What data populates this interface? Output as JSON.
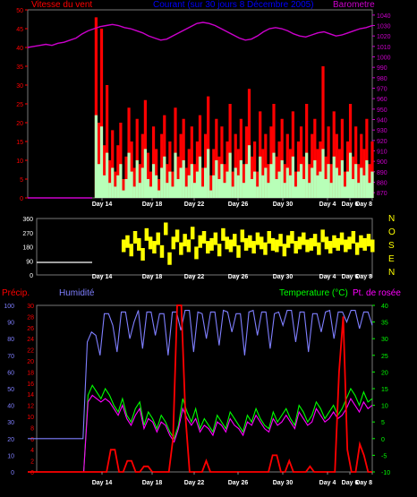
{
  "colors": {
    "background": "#000000",
    "wind_avg": "#b8ffb8",
    "wind_gust": "#ff0000",
    "barometer": "#cc00cc",
    "direction": "#ffff00",
    "humidity": "#7f7fff",
    "precip": "#ff0000",
    "temperature": "#00ff00",
    "dewpoint": "#ff00ff",
    "title": "#0000ff",
    "zero_line": "#ffffff",
    "grid": "#555555"
  },
  "header": {
    "wind_label": "Vitesse du vent",
    "title": "Courant (sur 30 jours 8 Décembre 2005)",
    "barometer_label": "Barometre"
  },
  "direction_letters": [
    "N",
    "O",
    "S",
    "E",
    "N"
  ],
  "bottom_header": {
    "precip_label": "Précip.",
    "humidity_label": "Humidité",
    "temperature_label": "Temperature (°C)",
    "dewpoint_label": "Pt. de rosée"
  },
  "x_tick_labels": [
    "Day 14",
    "Day 18",
    "Day 22",
    "Day 26",
    "Day 30",
    "Day 4",
    "Day 6",
    "Day 8"
  ],
  "chart_data": [
    {
      "type": "area",
      "title": "Courant (sur 30 jours 8 Décembre 2005)",
      "x_ticks": [
        "Day 14",
        "Day 18",
        "Day 22",
        "Day 26",
        "Day 30",
        "Day 4",
        "Day 6",
        "Day 8"
      ],
      "y_left_ticks": [
        0,
        5,
        10,
        15,
        20,
        25,
        30,
        35,
        40,
        45,
        50
      ],
      "y_right_ticks": [
        870,
        880,
        890,
        900,
        910,
        920,
        930,
        940,
        950,
        960,
        970,
        980,
        990,
        1000,
        1010,
        1020,
        1030,
        1040
      ],
      "ylim_left": [
        0,
        50
      ],
      "ylim_right": [
        865,
        1045
      ],
      "series": [
        {
          "name": "Vitesse du vent",
          "axis": "left",
          "color": "#b8ffb8",
          "values": [
            0,
            0,
            0,
            0,
            0,
            0,
            0,
            0,
            0,
            0,
            0,
            0,
            0,
            0,
            0,
            0,
            0,
            0,
            0,
            0,
            0,
            0,
            0,
            0,
            0,
            22,
            9,
            19,
            6,
            12,
            4,
            8,
            3,
            6,
            9,
            2,
            5,
            12,
            7,
            3,
            10,
            4,
            8,
            13,
            5,
            3,
            9,
            6,
            2,
            8,
            11,
            4,
            7,
            3,
            12,
            5,
            8,
            10,
            3,
            6,
            9,
            4,
            7,
            11,
            3,
            8,
            13,
            2,
            6,
            10,
            5,
            9,
            4,
            7,
            12,
            3,
            8,
            6,
            10,
            4,
            9,
            14,
            5,
            7,
            3,
            11,
            6,
            8,
            4,
            9,
            12,
            5,
            7,
            10,
            4,
            8,
            6,
            11,
            3,
            7,
            9,
            5,
            12,
            4,
            8,
            10,
            6,
            7,
            13,
            5,
            9,
            4,
            11,
            8,
            6,
            10,
            3,
            7,
            12,
            5,
            9,
            4,
            8,
            6,
            10,
            4,
            7
          ]
        },
        {
          "name": "Rafales",
          "axis": "left",
          "color": "#ff0000",
          "values": [
            0,
            0,
            0,
            0,
            0,
            0,
            0,
            0,
            0,
            0,
            0,
            0,
            0,
            0,
            0,
            0,
            0,
            0,
            0,
            0,
            0,
            0,
            0,
            0,
            0,
            48,
            20,
            45,
            14,
            30,
            10,
            18,
            7,
            14,
            20,
            5,
            11,
            24,
            15,
            8,
            21,
            9,
            17,
            26,
            12,
            7,
            19,
            13,
            5,
            17,
            22,
            9,
            15,
            7,
            24,
            11,
            17,
            21,
            8,
            13,
            19,
            9,
            15,
            22,
            8,
            17,
            27,
            6,
            13,
            21,
            11,
            19,
            9,
            15,
            25,
            7,
            17,
            13,
            21,
            9,
            19,
            29,
            11,
            15,
            7,
            23,
            13,
            17,
            9,
            19,
            25,
            11,
            15,
            21,
            9,
            17,
            13,
            23,
            7,
            15,
            19,
            11,
            25,
            9,
            17,
            21,
            13,
            15,
            35,
            11,
            19,
            9,
            23,
            17,
            13,
            21,
            7,
            15,
            25,
            11,
            19,
            9,
            17,
            13,
            21,
            9,
            15
          ]
        },
        {
          "name": "Barometre",
          "axis": "right",
          "color": "#cc00cc",
          "values": [
            1009,
            1010,
            1011,
            1012,
            1011,
            1013,
            1014,
            1016,
            1018,
            1022,
            1025,
            1027,
            1029,
            1030,
            1031,
            1030,
            1028,
            1027,
            1025,
            1023,
            1020,
            1018,
            1016,
            1017,
            1020,
            1023,
            1026,
            1029,
            1032,
            1033,
            1032,
            1030,
            1027,
            1024,
            1021,
            1018,
            1016,
            1017,
            1020,
            1024,
            1027,
            1028,
            1027,
            1025,
            1022,
            1020,
            1019,
            1021,
            1023,
            1024,
            1022,
            1020,
            1021,
            1023,
            1025,
            1027,
            1028,
            1030
          ]
        }
      ]
    },
    {
      "type": "scatter",
      "name": "Direction du vent",
      "y_ticks": [
        0,
        90,
        180,
        270,
        360
      ],
      "ylim": [
        0,
        360
      ],
      "series": [
        {
          "name": "Direction",
          "color": "#ffff00",
          "values": [
            0,
            0,
            0,
            0,
            0,
            0,
            0,
            0,
            0,
            0,
            0,
            0,
            0,
            0,
            0,
            0,
            0,
            0,
            0,
            0,
            0,
            0,
            0,
            0,
            0,
            180,
            210,
            150,
            240,
            190,
            120,
            260,
            200,
            170,
            230,
            140,
            300,
            90,
            200,
            250,
            160,
            220,
            180,
            270,
            130,
            210,
            240,
            170,
            190,
            230,
            150,
            260,
            200,
            180,
            220,
            140,
            250,
            190,
            210,
            170,
            230,
            200,
            160,
            240,
            190,
            180,
            220,
            150,
            210,
            240,
            170,
            200,
            230,
            180,
            190,
            220,
            160,
            250,
            200,
            170,
            210,
            190,
            230,
            180,
            200,
            240,
            160,
            210,
            190,
            220,
            180
          ]
        }
      ]
    },
    {
      "type": "line",
      "x_ticks": [
        "Day 14",
        "Day 18",
        "Day 22",
        "Day 26",
        "Day 30",
        "Day 4",
        "Day 6",
        "Day 8"
      ],
      "humidity_ticks": [
        0,
        10,
        20,
        30,
        40,
        50,
        60,
        70,
        80,
        90,
        100
      ],
      "precip_ticks": [
        0,
        2,
        4,
        6,
        8,
        10,
        12,
        14,
        16,
        18,
        20,
        22,
        24,
        26,
        28,
        30
      ],
      "temp_ticks": [
        -10,
        -5,
        0,
        5,
        10,
        15,
        20,
        25,
        30,
        35,
        40
      ],
      "series": [
        {
          "name": "Humidité",
          "axis": "humidity",
          "color": "#7f7fff",
          "values": [
            20,
            20,
            20,
            20,
            20,
            20,
            20,
            20,
            20,
            20,
            20,
            20,
            20,
            20,
            78,
            84,
            82,
            70,
            95,
            95,
            88,
            72,
            96,
            96,
            80,
            90,
            97,
            74,
            96,
            96,
            82,
            95,
            95,
            70,
            96,
            96,
            85,
            97,
            97,
            72,
            96,
            95,
            80,
            96,
            96,
            76,
            97,
            96,
            84,
            95,
            95,
            70,
            96,
            97,
            82,
            96,
            96,
            74,
            95,
            96,
            88,
            97,
            97,
            78,
            96,
            96,
            72,
            95,
            95,
            84,
            96,
            97,
            80,
            96,
            96,
            90,
            97,
            97,
            86,
            96,
            96,
            88
          ]
        },
        {
          "name": "Précip.",
          "axis": "precip",
          "color": "#ff0000",
          "values": [
            0,
            0,
            0,
            0,
            0,
            0,
            0,
            0,
            0,
            0,
            0,
            0,
            0,
            0,
            0,
            0,
            0,
            0,
            0,
            0,
            4,
            4,
            0,
            0,
            2,
            2,
            0,
            0,
            1,
            1,
            0,
            0,
            0,
            0,
            0,
            6,
            30,
            30,
            10,
            0,
            0,
            0,
            0,
            2,
            0,
            0,
            0,
            0,
            0,
            0,
            0,
            0,
            0,
            0,
            0,
            0,
            0,
            0,
            0,
            3,
            3,
            0,
            0,
            2,
            0,
            0,
            0,
            0,
            1,
            0,
            0,
            0,
            0,
            0,
            0,
            18,
            28,
            4,
            0,
            0,
            5,
            3,
            0,
            0
          ]
        },
        {
          "name": "Temperature (°C)",
          "axis": "temp",
          "color": "#00ff00",
          "values": [
            -10,
            -10,
            -10,
            -10,
            -10,
            -10,
            -10,
            -10,
            -10,
            -10,
            -10,
            -10,
            -10,
            -10,
            13,
            16,
            14,
            12,
            15,
            13,
            10,
            8,
            12,
            7,
            5,
            9,
            11,
            4,
            8,
            6,
            3,
            7,
            5,
            2,
            0,
            4,
            12,
            8,
            5,
            9,
            3,
            6,
            4,
            2,
            7,
            5,
            3,
            8,
            6,
            4,
            2,
            7,
            5,
            9,
            6,
            4,
            3,
            8,
            5,
            7,
            9,
            6,
            4,
            10,
            8,
            5,
            7,
            11,
            9,
            6,
            8,
            10,
            7,
            9,
            12,
            15,
            13,
            10,
            14,
            11,
            12
          ]
        },
        {
          "name": "Pt. de rosée",
          "axis": "temp",
          "color": "#ff00ff",
          "values": [
            -10,
            -10,
            -10,
            -10,
            -10,
            -10,
            -10,
            -10,
            -10,
            -10,
            -10,
            -10,
            -10,
            -10,
            11,
            13,
            12,
            11,
            12,
            11,
            9,
            7,
            10,
            6,
            4,
            7,
            9,
            3,
            6,
            5,
            2,
            5,
            4,
            1,
            -1,
            3,
            9,
            6,
            4,
            6,
            2,
            4,
            3,
            1,
            5,
            4,
            2,
            6,
            4,
            3,
            1,
            5,
            4,
            7,
            5,
            3,
            2,
            6,
            4,
            5,
            7,
            5,
            3,
            8,
            6,
            4,
            5,
            9,
            7,
            5,
            6,
            8,
            6,
            7,
            9,
            12,
            10,
            8,
            11,
            9,
            10
          ]
        }
      ]
    }
  ]
}
